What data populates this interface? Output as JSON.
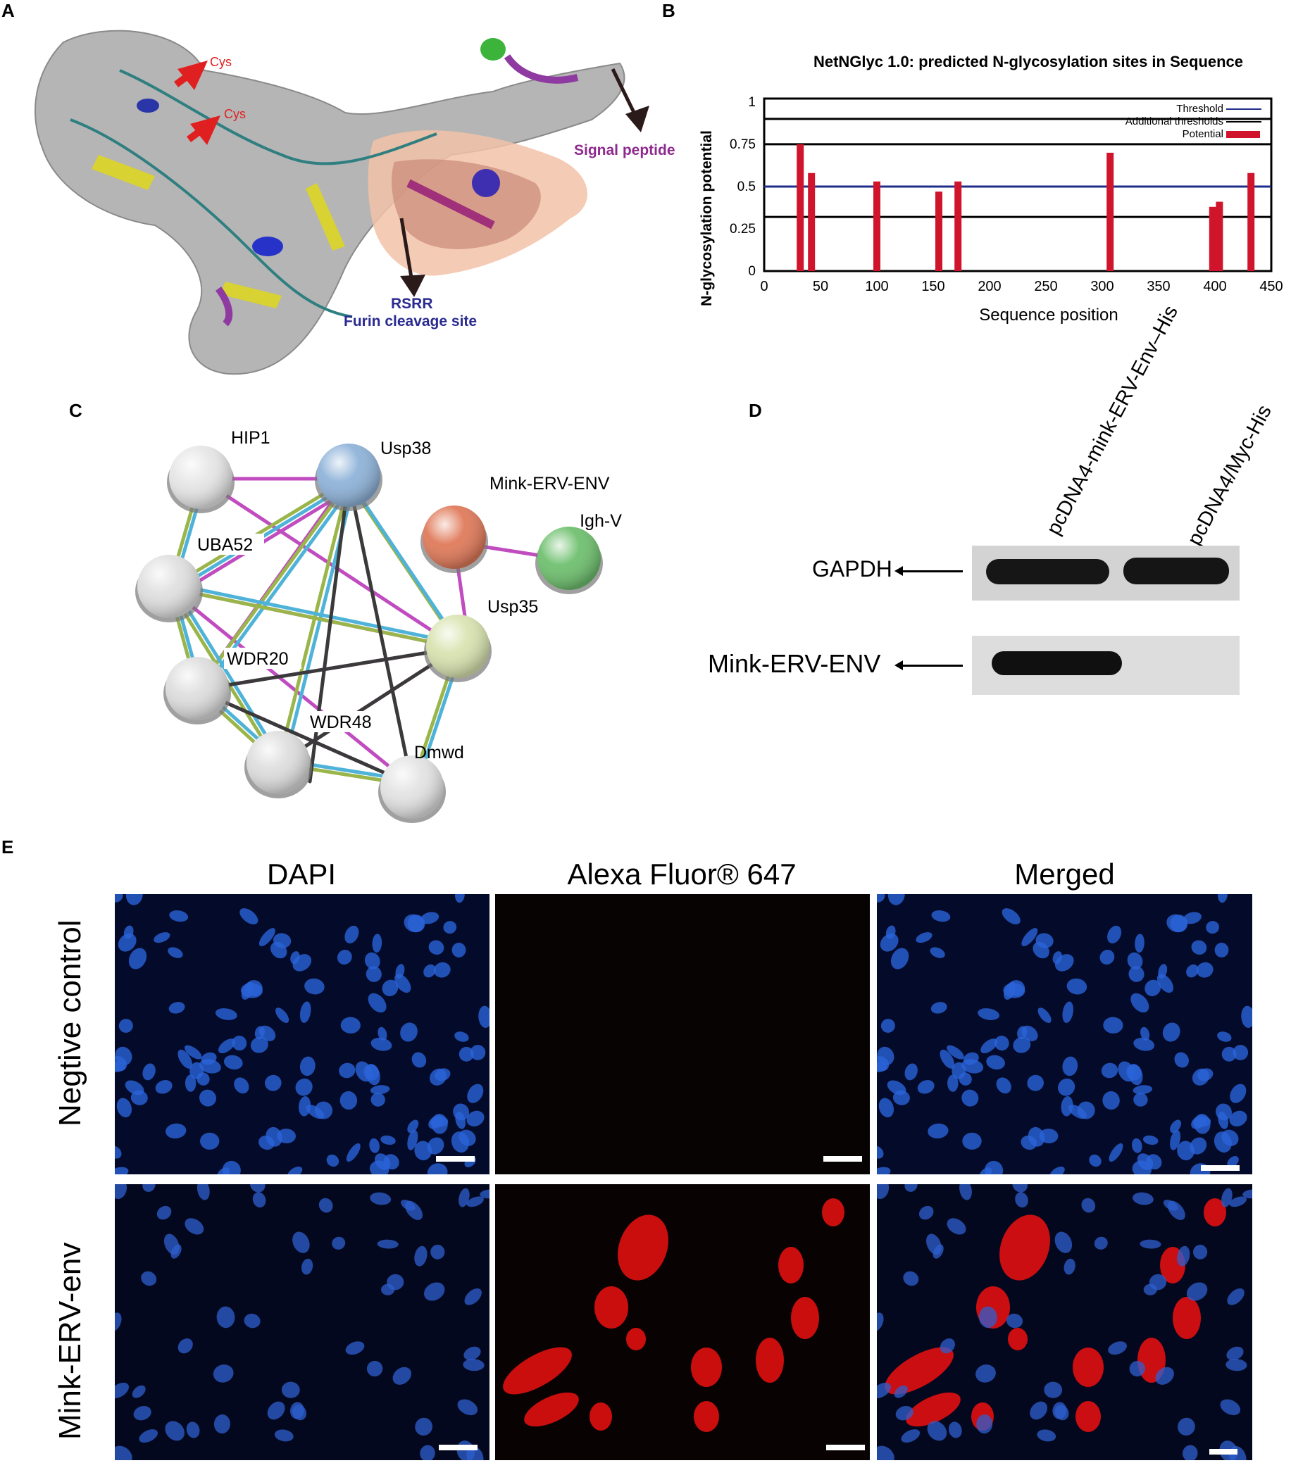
{
  "panels": {
    "A": {
      "letter": "A",
      "labels": {
        "cys1": "Cys",
        "cys2": "Cys",
        "signal": "Signal peptide",
        "rsrr": "RSRR",
        "furin": "Furin cleavage site"
      }
    },
    "B": {
      "letter": "B"
    },
    "C": {
      "letter": "C",
      "nodes": [
        {
          "label": "HIP1",
          "color": "#e6e6e6"
        },
        {
          "label": "Usp38",
          "color": "#8fb3d9"
        },
        {
          "label": "Mink-ERV-ENV",
          "color": "#e07a5a"
        },
        {
          "label": "Igh-V",
          "color": "#6fc06f"
        },
        {
          "label": "UBA52",
          "color": "#e0e0e0"
        },
        {
          "label": "Usp35",
          "color": "#d9e3b0"
        },
        {
          "label": "WDR20",
          "color": "#dedede"
        },
        {
          "label": "WDR48",
          "color": "#dedede"
        },
        {
          "label": "Dmwd",
          "color": "#e3e3e3"
        }
      ]
    },
    "D": {
      "letter": "D",
      "lanes": [
        "pcDNA4-mink-ERV-Env–His",
        "pcDNA4/Myc-His"
      ],
      "rows": [
        "GAPDH",
        "Mink-ERV-ENV"
      ]
    },
    "E": {
      "letter": "E",
      "columns": [
        "DAPI",
        "Alexa Fluor® 647",
        "Merged"
      ],
      "rows": [
        "Negtive control",
        "Mink-ERV-env"
      ]
    }
  },
  "chart_data": {
    "type": "bar",
    "title": "NetNGlyc 1.0: predicted N-glycosylation sites in Sequence",
    "xlabel": "Sequence position",
    "ylabel": "N-glycosylation potential",
    "xlim": [
      0,
      450
    ],
    "ylim": [
      0,
      1.0
    ],
    "xticks": [
      "0",
      "50",
      "100",
      "150",
      "200",
      "250",
      "300",
      "350",
      "400",
      "450"
    ],
    "yticks": [
      "0",
      "0.25",
      "0.5",
      "0.75",
      "1"
    ],
    "legend": {
      "placement": "top-right",
      "entries": [
        "Threshold",
        "Additional thresholds",
        "Potential"
      ]
    },
    "threshold": 0.5,
    "additional_thresholds": [
      0.32,
      0.75,
      0.9
    ],
    "colors": {
      "threshold": "#1f2d8a",
      "additional": "#000000",
      "potential": "#d0142c"
    },
    "series": [
      {
        "name": "Potential",
        "x": [
          32,
          42,
          100,
          155,
          172,
          307,
          398,
          404,
          432
        ],
        "values": [
          0.75,
          0.58,
          0.53,
          0.47,
          0.53,
          0.7,
          0.38,
          0.41,
          0.58
        ]
      }
    ]
  }
}
